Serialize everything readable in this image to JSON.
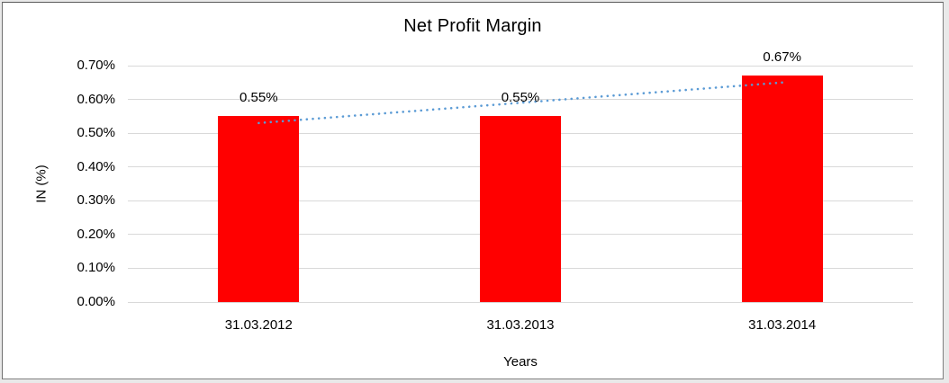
{
  "chart_data": {
    "type": "bar",
    "title": "Net Profit Margin",
    "xlabel": "Years",
    "ylabel": "IN (%)",
    "categories": [
      "31.03.2012",
      "31.03.2013",
      "31.03.2014"
    ],
    "values": [
      0.55,
      0.55,
      0.67
    ],
    "data_labels": [
      "0.55%",
      "0.55%",
      "0.67%"
    ],
    "ylim": [
      0,
      0.7
    ],
    "ytick_step": 0.1,
    "ytick_labels": [
      "0.00%",
      "0.10%",
      "0.20%",
      "0.30%",
      "0.40%",
      "0.50%",
      "0.60%",
      "0.70%"
    ],
    "grid": true,
    "legend": "none",
    "bar_color": "#ff0000",
    "gridline_color": "#d9d9d9",
    "trendline": {
      "type": "linear",
      "style": "dotted",
      "color": "#5b9bd5",
      "start_value": 0.53,
      "end_value": 0.65
    }
  }
}
